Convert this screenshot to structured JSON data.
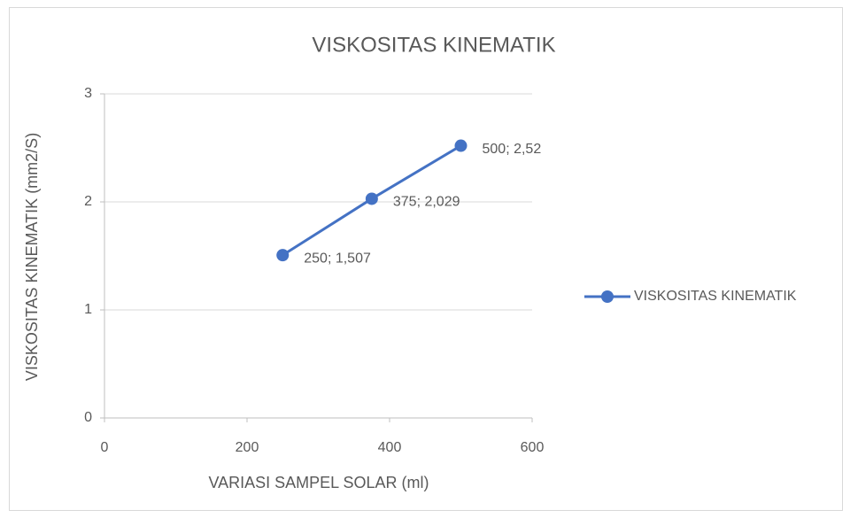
{
  "chart_data": {
    "type": "line",
    "title": "VISKOSITAS KINEMATIK",
    "xlabel": "VARIASI SAMPEL SOLAR (ml)",
    "ylabel": "VISKOSITAS KINEMATIK (mm2/S)",
    "x": [
      250,
      375,
      500
    ],
    "series": [
      {
        "name": "VISKOSITAS KINEMATIK",
        "color": "#4472c4",
        "values": [
          1.507,
          2.029,
          2.52
        ],
        "value_labels": [
          "250; 1,507",
          "375; 2,029",
          "500; 2,52"
        ]
      }
    ],
    "xlim": [
      0,
      600
    ],
    "xticks": [
      0,
      200,
      400,
      600
    ],
    "ylim": [
      0,
      3
    ],
    "yticks": [
      0,
      1,
      2,
      3
    ],
    "grid": true,
    "legend": "right"
  }
}
